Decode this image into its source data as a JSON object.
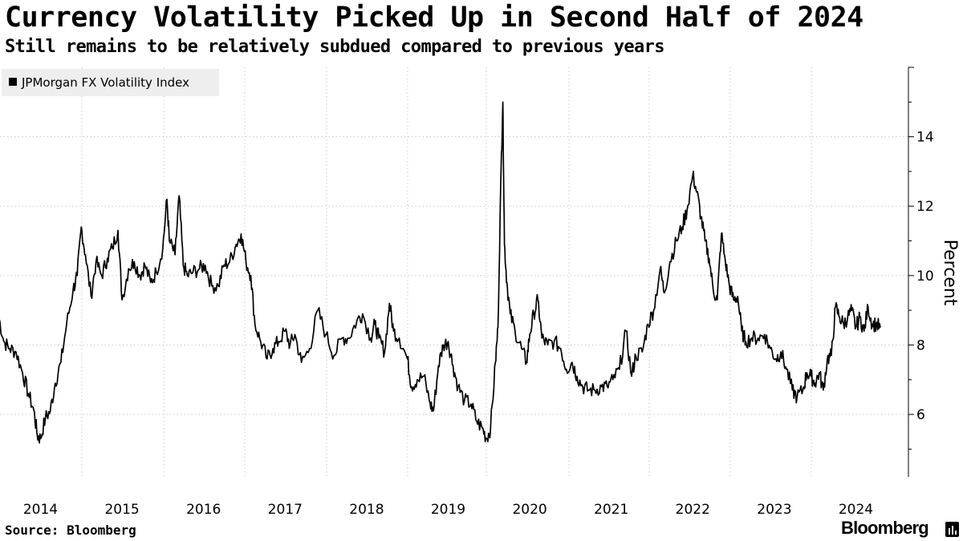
{
  "header": {
    "title": "Currency Volatility Picked Up in Second Half of 2024",
    "subtitle": "Still remains to be relatively subdued compared to previous years"
  },
  "footer": {
    "source": "Source: Bloomberg",
    "brand": "Bloomberg"
  },
  "colors": {
    "line": "#000000",
    "grid": "#cccccc",
    "legend_bg": "#eeeeee"
  },
  "chart_data": {
    "type": "line",
    "title": "Currency Volatility Picked Up in Second Half of 2024",
    "subtitle": "Still remains to be relatively subdued compared to previous years",
    "ylabel": "Percent",
    "xlabel": "",
    "ylim": [
      4.2,
      16
    ],
    "xlim": [
      2014.0,
      2025.0
    ],
    "yticks": [
      6,
      8,
      10,
      12,
      14
    ],
    "xtick_labels": [
      "2014",
      "2015",
      "2016",
      "2017",
      "2018",
      "2019",
      "2020",
      "2021",
      "2022",
      "2023",
      "2024"
    ],
    "legend": {
      "position": "top-left",
      "entries": [
        "JPMorgan FX Volatility Index"
      ]
    },
    "grid": "dotted",
    "series": [
      {
        "name": "JPMorgan FX Volatility Index",
        "points": [
          [
            2013.48,
            8.9
          ],
          [
            2013.55,
            8.1
          ],
          [
            2013.62,
            7.9
          ],
          [
            2013.7,
            7.8
          ],
          [
            2013.78,
            7.2
          ],
          [
            2013.85,
            6.6
          ],
          [
            2013.92,
            6.1
          ],
          [
            2013.96,
            5.4
          ],
          [
            2014.0,
            5.3
          ],
          [
            2014.06,
            5.9
          ],
          [
            2014.12,
            6.1
          ],
          [
            2014.18,
            6.9
          ],
          [
            2014.25,
            7.5
          ],
          [
            2014.32,
            8.6
          ],
          [
            2014.4,
            9.6
          ],
          [
            2014.45,
            10.0
          ],
          [
            2014.5,
            11.4
          ],
          [
            2014.55,
            10.6
          ],
          [
            2014.62,
            9.4
          ],
          [
            2014.68,
            10.4
          ],
          [
            2014.75,
            10.0
          ],
          [
            2014.82,
            10.5
          ],
          [
            2014.88,
            10.8
          ],
          [
            2014.95,
            11.3
          ],
          [
            2015.0,
            9.3
          ],
          [
            2015.08,
            10.2
          ],
          [
            2015.15,
            10.4
          ],
          [
            2015.22,
            10.0
          ],
          [
            2015.28,
            10.3
          ],
          [
            2015.35,
            9.8
          ],
          [
            2015.42,
            10.1
          ],
          [
            2015.5,
            10.8
          ],
          [
            2015.55,
            12.2
          ],
          [
            2015.58,
            11.0
          ],
          [
            2015.65,
            10.6
          ],
          [
            2015.7,
            12.3
          ],
          [
            2015.75,
            10.3
          ],
          [
            2015.8,
            10.0
          ],
          [
            2015.87,
            10.1
          ],
          [
            2015.95,
            10.2
          ],
          [
            2016.02,
            10.3
          ],
          [
            2016.1,
            9.7
          ],
          [
            2016.18,
            9.7
          ],
          [
            2016.25,
            10.3
          ],
          [
            2016.32,
            10.4
          ],
          [
            2016.4,
            10.9
          ],
          [
            2016.46,
            11.2
          ],
          [
            2016.52,
            10.4
          ],
          [
            2016.58,
            10.0
          ],
          [
            2016.63,
            8.6
          ],
          [
            2016.7,
            8.1
          ],
          [
            2016.78,
            7.6
          ],
          [
            2016.85,
            7.9
          ],
          [
            2016.92,
            8.1
          ],
          [
            2017.0,
            8.4
          ],
          [
            2017.06,
            8.0
          ],
          [
            2017.12,
            8.3
          ],
          [
            2017.2,
            7.5
          ],
          [
            2017.3,
            7.9
          ],
          [
            2017.4,
            9.0
          ],
          [
            2017.5,
            8.3
          ],
          [
            2017.6,
            7.7
          ],
          [
            2017.7,
            8.2
          ],
          [
            2017.78,
            8.2
          ],
          [
            2017.88,
            8.7
          ],
          [
            2017.95,
            8.9
          ],
          [
            2018.05,
            8.2
          ],
          [
            2018.1,
            8.6
          ],
          [
            2018.15,
            8.2
          ],
          [
            2018.22,
            7.8
          ],
          [
            2018.28,
            9.2
          ],
          [
            2018.33,
            8.4
          ],
          [
            2018.4,
            8.2
          ],
          [
            2018.5,
            7.6
          ],
          [
            2018.55,
            6.8
          ],
          [
            2018.62,
            7.0
          ],
          [
            2018.7,
            7.1
          ],
          [
            2018.78,
            6.3
          ],
          [
            2018.82,
            6.1
          ],
          [
            2018.88,
            7.4
          ],
          [
            2018.94,
            8.0
          ],
          [
            2019.0,
            8.1
          ],
          [
            2019.06,
            7.4
          ],
          [
            2019.12,
            6.8
          ],
          [
            2019.2,
            6.4
          ],
          [
            2019.28,
            6.3
          ],
          [
            2019.35,
            5.8
          ],
          [
            2019.42,
            5.6
          ],
          [
            2019.47,
            5.3
          ],
          [
            2019.52,
            5.6
          ],
          [
            2019.58,
            7.5
          ],
          [
            2019.61,
            8.5
          ],
          [
            2019.65,
            13.2
          ],
          [
            2019.67,
            15.0
          ],
          [
            2019.69,
            10.9
          ],
          [
            2019.72,
            9.8
          ],
          [
            2019.76,
            8.9
          ],
          [
            2019.82,
            8.4
          ],
          [
            2019.9,
            7.9
          ],
          [
            2019.96,
            7.5
          ],
          [
            2020.0,
            8.3
          ],
          [
            2020.05,
            8.9
          ],
          [
            2020.1,
            9.3
          ],
          [
            2020.15,
            8.2
          ],
          [
            2020.22,
            8.0
          ],
          [
            2020.3,
            8.1
          ],
          [
            2020.38,
            7.9
          ],
          [
            2020.45,
            7.3
          ],
          [
            2020.52,
            7.5
          ],
          [
            2020.58,
            7.1
          ],
          [
            2020.65,
            6.8
          ],
          [
            2020.72,
            6.7
          ],
          [
            2020.8,
            6.7
          ],
          [
            2020.88,
            6.8
          ],
          [
            2020.95,
            6.8
          ],
          [
            2021.02,
            7.0
          ],
          [
            2021.1,
            7.3
          ],
          [
            2021.18,
            8.4
          ],
          [
            2021.25,
            7.1
          ],
          [
            2021.3,
            7.7
          ],
          [
            2021.38,
            7.8
          ],
          [
            2021.45,
            8.6
          ],
          [
            2021.52,
            9.0
          ],
          [
            2021.6,
            10.2
          ],
          [
            2021.65,
            9.5
          ],
          [
            2021.72,
            10.4
          ],
          [
            2021.8,
            11.0
          ],
          [
            2021.87,
            11.4
          ],
          [
            2021.93,
            11.9
          ],
          [
            2022.0,
            12.9
          ],
          [
            2022.05,
            12.4
          ],
          [
            2022.1,
            11.7
          ],
          [
            2022.15,
            11.0
          ],
          [
            2022.2,
            10.5
          ],
          [
            2022.25,
            9.6
          ],
          [
            2022.3,
            9.3
          ],
          [
            2022.35,
            11.2
          ],
          [
            2022.4,
            10.4
          ],
          [
            2022.45,
            9.7
          ],
          [
            2022.5,
            9.3
          ],
          [
            2022.55,
            9.4
          ],
          [
            2022.6,
            8.4
          ],
          [
            2022.65,
            8.1
          ],
          [
            2022.72,
            8.2
          ],
          [
            2022.8,
            8.2
          ],
          [
            2022.88,
            8.3
          ],
          [
            2022.95,
            7.9
          ],
          [
            2023.02,
            7.6
          ],
          [
            2023.08,
            7.8
          ],
          [
            2023.15,
            7.3
          ],
          [
            2023.22,
            6.7
          ],
          [
            2023.28,
            6.5
          ],
          [
            2023.35,
            6.7
          ],
          [
            2023.4,
            7.2
          ],
          [
            2023.45,
            7.1
          ],
          [
            2023.5,
            6.9
          ],
          [
            2023.55,
            7.2
          ],
          [
            2023.6,
            6.7
          ],
          [
            2023.65,
            7.6
          ],
          [
            2023.7,
            7.7
          ],
          [
            2023.75,
            9.1
          ],
          [
            2023.8,
            8.8
          ],
          [
            2023.85,
            8.6
          ],
          [
            2023.9,
            8.8
          ],
          [
            2023.95,
            9.0
          ],
          [
            2024.0,
            8.5
          ],
          [
            2024.05,
            8.8
          ],
          [
            2024.1,
            8.4
          ],
          [
            2024.15,
            9.1
          ],
          [
            2024.2,
            8.6
          ],
          [
            2024.25,
            8.6
          ],
          [
            2024.3,
            8.5
          ]
        ]
      }
    ]
  }
}
